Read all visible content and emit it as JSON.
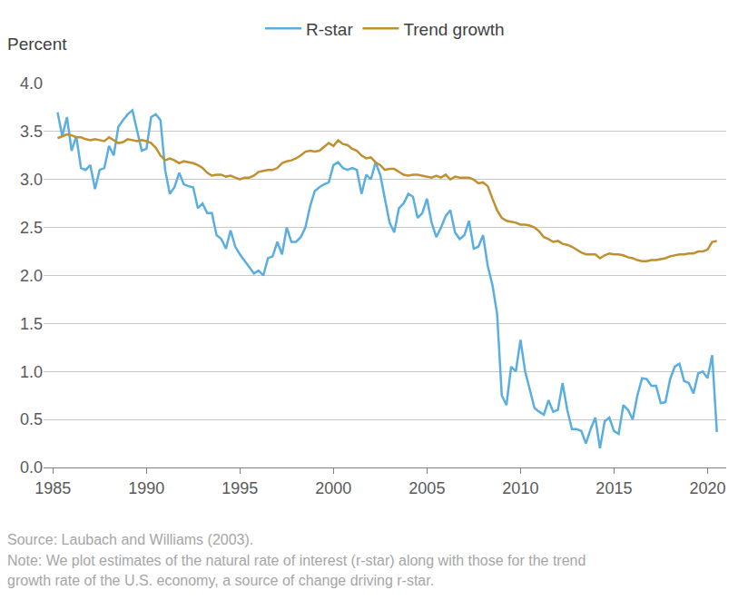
{
  "chart_data": {
    "type": "line",
    "y_label": "Percent",
    "notes": [
      "Source: Laubach and Williams (2003).",
      "Note: We plot estimates of the natural rate of interest (r-star) along with those for the trend",
      "growth rate of the U.S. economy, a source of change driving r-star."
    ],
    "legend": "top",
    "grid": true,
    "xlim": [
      1984.5,
      2021
    ],
    "xticks": [
      1985,
      1990,
      1995,
      2000,
      2005,
      2010,
      2015,
      2020
    ],
    "ylim": [
      0,
      4
    ],
    "yticks": [
      {
        "value": 0,
        "label": "0.0"
      },
      0.5,
      {
        "value": 1,
        "label": "1.0"
      },
      1.5,
      {
        "value": 2,
        "label": "2.0"
      },
      2.5,
      {
        "value": 3,
        "label": "3.0"
      },
      3.5,
      {
        "value": 4,
        "label": "4.0"
      }
    ],
    "x": [
      1985.25,
      1985.5,
      1985.75,
      1986,
      1986.25,
      1986.5,
      1986.75,
      1987,
      1987.25,
      1987.5,
      1987.75,
      1988,
      1988.25,
      1988.5,
      1988.75,
      1989,
      1989.25,
      1989.5,
      1989.75,
      1990,
      1990.25,
      1990.5,
      1990.75,
      1991,
      1991.25,
      1991.5,
      1991.75,
      1992,
      1992.25,
      1992.5,
      1992.75,
      1993,
      1993.25,
      1993.5,
      1993.75,
      1994,
      1994.25,
      1994.5,
      1994.75,
      1995,
      1995.25,
      1995.5,
      1995.75,
      1996,
      1996.25,
      1996.5,
      1996.75,
      1997,
      1997.25,
      1997.5,
      1997.75,
      1998,
      1998.25,
      1998.5,
      1998.75,
      1999,
      1999.25,
      1999.5,
      1999.75,
      2000,
      2000.25,
      2000.5,
      2000.75,
      2001,
      2001.25,
      2001.5,
      2001.75,
      2002,
      2002.25,
      2002.5,
      2002.75,
      2003,
      2003.25,
      2003.5,
      2003.75,
      2004,
      2004.25,
      2004.5,
      2004.75,
      2005,
      2005.25,
      2005.5,
      2005.75,
      2006,
      2006.25,
      2006.5,
      2006.75,
      2007,
      2007.25,
      2007.5,
      2007.75,
      2008,
      2008.25,
      2008.5,
      2008.75,
      2009,
      2009.25,
      2009.5,
      2009.75,
      2010,
      2010.25,
      2010.5,
      2010.75,
      2011,
      2011.25,
      2011.5,
      2011.75,
      2012,
      2012.25,
      2012.5,
      2012.75,
      2013,
      2013.25,
      2013.5,
      2013.75,
      2014,
      2014.25,
      2014.5,
      2014.75,
      2015,
      2015.25,
      2015.5,
      2015.75,
      2016,
      2016.25,
      2016.5,
      2016.75,
      2017,
      2017.25,
      2017.5,
      2017.75,
      2018,
      2018.25,
      2018.5,
      2018.75,
      2019,
      2019.25,
      2019.5,
      2019.75,
      2020,
      2020.25,
      2020.5
    ],
    "series": [
      {
        "name": "R-star",
        "color": "#5aaee0",
        "values": [
          3.7,
          3.45,
          3.65,
          3.3,
          3.45,
          3.12,
          3.1,
          3.15,
          2.9,
          3.1,
          3.12,
          3.35,
          3.25,
          3.55,
          3.62,
          3.68,
          3.72,
          3.5,
          3.3,
          3.32,
          3.65,
          3.68,
          3.62,
          3.1,
          2.85,
          2.92,
          3.07,
          2.95,
          2.93,
          2.92,
          2.7,
          2.75,
          2.65,
          2.65,
          2.42,
          2.38,
          2.28,
          2.47,
          2.3,
          2.22,
          2.15,
          2.08,
          2.02,
          2.05,
          2.0,
          2.18,
          2.2,
          2.35,
          2.22,
          2.5,
          2.35,
          2.35,
          2.4,
          2.5,
          2.72,
          2.88,
          2.92,
          2.95,
          2.97,
          3.15,
          3.18,
          3.12,
          3.1,
          3.12,
          3.1,
          2.85,
          3.05,
          3.0,
          3.18,
          3.05,
          2.8,
          2.55,
          2.45,
          2.7,
          2.75,
          2.85,
          2.82,
          2.6,
          2.65,
          2.8,
          2.55,
          2.4,
          2.5,
          2.62,
          2.68,
          2.45,
          2.38,
          2.42,
          2.57,
          2.28,
          2.3,
          2.42,
          2.1,
          1.9,
          1.6,
          0.75,
          0.65,
          1.05,
          1.0,
          1.33,
          1.0,
          0.8,
          0.62,
          0.58,
          0.55,
          0.7,
          0.58,
          0.6,
          0.88,
          0.6,
          0.4,
          0.4,
          0.38,
          0.25,
          0.4,
          0.52,
          0.2,
          0.48,
          0.52,
          0.38,
          0.35,
          0.65,
          0.6,
          0.5,
          0.75,
          0.93,
          0.92,
          0.85,
          0.85,
          0.67,
          0.68,
          0.92,
          1.05,
          1.08,
          0.9,
          0.88,
          0.77,
          0.98,
          1.0,
          0.93,
          1.17,
          0.37
        ]
      },
      {
        "name": "Trend growth",
        "color": "#c0902f",
        "values": [
          3.43,
          3.45,
          3.47,
          3.46,
          3.44,
          3.44,
          3.42,
          3.41,
          3.42,
          3.41,
          3.4,
          3.44,
          3.41,
          3.38,
          3.39,
          3.42,
          3.41,
          3.4,
          3.41,
          3.4,
          3.38,
          3.33,
          3.25,
          3.2,
          3.22,
          3.2,
          3.17,
          3.19,
          3.18,
          3.17,
          3.15,
          3.12,
          3.07,
          3.04,
          3.05,
          3.05,
          3.03,
          3.04,
          3.02,
          3.0,
          3.02,
          3.02,
          3.04,
          3.08,
          3.09,
          3.1,
          3.1,
          3.12,
          3.17,
          3.19,
          3.2,
          3.22,
          3.25,
          3.29,
          3.3,
          3.29,
          3.3,
          3.34,
          3.38,
          3.35,
          3.41,
          3.37,
          3.36,
          3.32,
          3.3,
          3.25,
          3.22,
          3.23,
          3.18,
          3.15,
          3.1,
          3.11,
          3.11,
          3.08,
          3.05,
          3.04,
          3.05,
          3.05,
          3.04,
          3.03,
          3.02,
          3.04,
          3.02,
          3.05,
          3.0,
          3.03,
          3.02,
          3.02,
          3.02,
          3.0,
          2.96,
          2.97,
          2.93,
          2.8,
          2.68,
          2.6,
          2.57,
          2.56,
          2.55,
          2.53,
          2.53,
          2.52,
          2.5,
          2.46,
          2.4,
          2.38,
          2.35,
          2.36,
          2.33,
          2.32,
          2.3,
          2.27,
          2.24,
          2.22,
          2.22,
          2.22,
          2.18,
          2.21,
          2.23,
          2.22,
          2.22,
          2.21,
          2.19,
          2.18,
          2.16,
          2.15,
          2.15,
          2.16,
          2.16,
          2.17,
          2.18,
          2.2,
          2.21,
          2.22,
          2.22,
          2.23,
          2.23,
          2.25,
          2.25,
          2.27,
          2.35,
          2.36
        ]
      }
    ]
  }
}
